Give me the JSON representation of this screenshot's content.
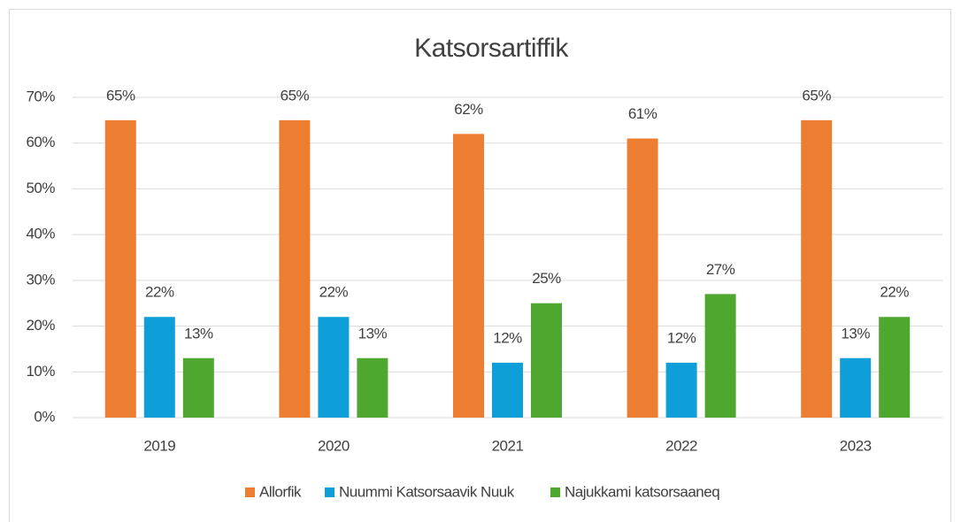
{
  "chart_data": {
    "type": "bar",
    "title": "Katsorsartiffik",
    "categories": [
      "2019",
      "2020",
      "2021",
      "2022",
      "2023"
    ],
    "series": [
      {
        "name": "Allorfik",
        "color": "#ed7d31",
        "values": [
          65,
          65,
          62,
          61,
          65
        ],
        "value_labels": [
          "65%",
          "65%",
          "62%",
          "61%",
          "65%"
        ]
      },
      {
        "name": "Nuummi Katsorsaavik Nuuk",
        "color": "#0e9ed8",
        "values": [
          22,
          22,
          12,
          12,
          13
        ],
        "value_labels": [
          "22%",
          "22%",
          "12%",
          "12%",
          "13%"
        ]
      },
      {
        "name": "Najukkami katsorsaaneq",
        "color": "#4ea72e",
        "values": [
          13,
          13,
          25,
          27,
          22
        ],
        "value_labels": [
          "13%",
          "13%",
          "25%",
          "27%",
          "22%"
        ]
      }
    ],
    "ylim": [
      0,
      70
    ],
    "yticks": [
      {
        "value": 0,
        "label": "0%"
      },
      {
        "value": 10,
        "label": "10%"
      },
      {
        "value": 20,
        "label": "20%"
      },
      {
        "value": 30,
        "label": "30%"
      },
      {
        "value": 40,
        "label": "40%"
      },
      {
        "value": 50,
        "label": "50%"
      },
      {
        "value": 60,
        "label": "60%"
      },
      {
        "value": 70,
        "label": "70%"
      }
    ],
    "grid": true,
    "legend": "bottom"
  }
}
